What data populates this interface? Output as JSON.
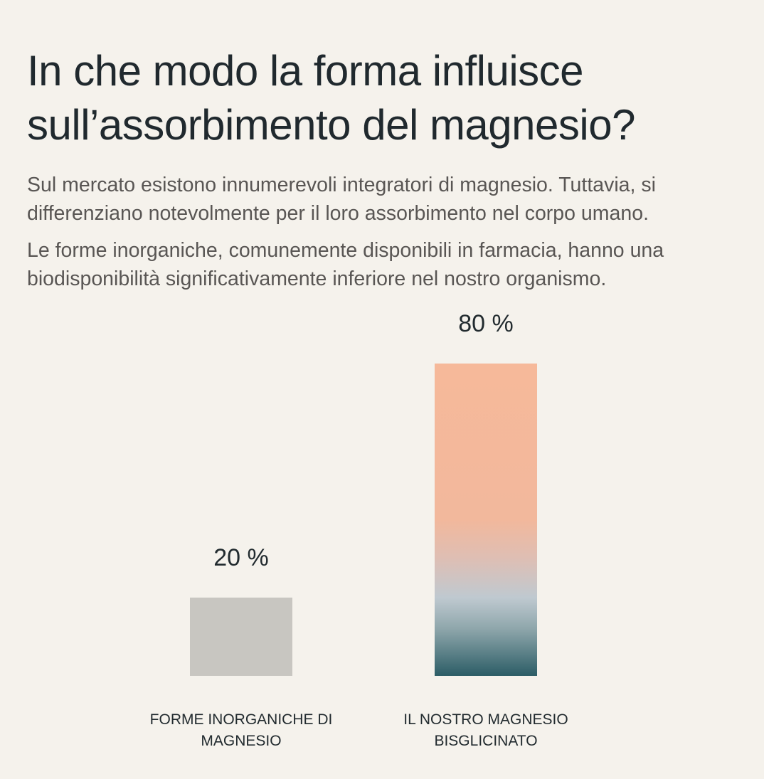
{
  "title": "In che modo la forma influisce sull’assorbimento del magnesio?",
  "paragraphs": [
    "Sul mercato esistono innumerevoli integratori di magnesio. Tuttavia, si differenziano notevolmente per il loro assorbimento nel corpo umano.",
    "Le forme inorganiche, comunemente disponibili in farmacia, hanno una biodisponibilità significativamente inferiore nel nostro organismo."
  ],
  "chart_data": {
    "type": "bar",
    "categories": [
      "FORME INORGANICHE DI MAGNESIO",
      "IL NOSTRO MAGNESIO BISGLICINATO"
    ],
    "values": [
      20,
      80
    ],
    "value_labels": [
      "20 %",
      "80 %"
    ],
    "ylim": [
      0,
      80
    ],
    "grid": false,
    "colors": [
      "#c8c6c1",
      "#f6b99a"
    ]
  }
}
